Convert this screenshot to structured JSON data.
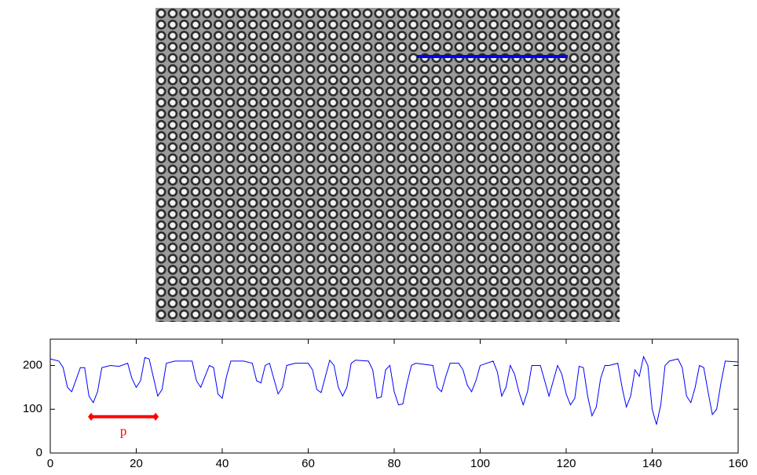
{
  "chart_data": {
    "type": "line",
    "x": [
      0,
      2,
      3,
      4,
      5,
      7,
      8,
      9,
      10,
      11,
      12,
      14,
      16,
      18,
      19,
      20,
      21,
      22,
      23,
      25,
      26,
      27,
      29,
      33,
      34,
      35,
      37,
      38,
      39,
      40,
      41,
      42,
      45,
      47,
      48,
      49,
      50,
      51,
      53,
      54,
      55,
      57,
      60,
      61,
      62,
      63,
      64,
      65,
      66,
      67,
      68,
      69,
      70,
      71,
      74,
      75,
      76,
      77,
      78,
      79,
      80,
      81,
      82,
      83,
      84,
      85,
      89,
      90,
      91,
      92,
      93,
      95,
      96,
      97,
      98,
      99,
      100,
      103,
      104,
      105,
      106,
      107,
      108,
      109,
      110,
      111,
      112,
      114,
      115,
      116,
      117,
      118,
      119,
      120,
      121,
      122,
      123,
      124,
      125,
      126,
      127,
      128,
      129,
      130,
      132,
      133,
      134,
      135,
      136,
      137,
      138,
      139,
      140,
      141,
      142,
      143,
      144,
      146,
      147,
      148,
      149,
      150,
      151,
      152,
      153,
      154,
      155,
      156,
      157,
      160
    ],
    "series": [
      {
        "color": "#0000ff",
        "values": [
          215,
          210,
          195,
          150,
          140,
          195,
          195,
          130,
          115,
          140,
          195,
          200,
          198,
          205,
          170,
          150,
          165,
          218,
          215,
          130,
          145,
          205,
          210,
          210,
          165,
          150,
          200,
          195,
          135,
          125,
          175,
          210,
          210,
          205,
          165,
          160,
          200,
          205,
          135,
          150,
          200,
          205,
          205,
          190,
          145,
          138,
          175,
          212,
          200,
          150,
          130,
          150,
          205,
          212,
          210,
          190,
          125,
          128,
          190,
          200,
          140,
          110,
          112,
          160,
          200,
          205,
          200,
          150,
          140,
          175,
          205,
          205,
          190,
          155,
          140,
          165,
          200,
          210,
          185,
          130,
          150,
          200,
          180,
          140,
          110,
          140,
          200,
          200,
          165,
          130,
          165,
          200,
          180,
          135,
          110,
          125,
          198,
          195,
          130,
          85,
          105,
          170,
          200,
          200,
          205,
          150,
          105,
          130,
          190,
          175,
          220,
          200,
          100,
          65,
          110,
          200,
          210,
          215,
          195,
          130,
          115,
          150,
          200,
          195,
          140,
          88,
          100,
          160,
          210,
          208
        ]
      }
    ],
    "xlim": [
      0,
      160
    ],
    "xticks": [
      0,
      20,
      40,
      60,
      80,
      100,
      120,
      140,
      160
    ],
    "ylim": [
      0,
      260
    ],
    "yticks": [
      0,
      100,
      200
    ],
    "annotations": [
      {
        "text": "p",
        "x1": 9.5,
        "x2": 24.5,
        "y": 83,
        "color": "#ff0000"
      }
    ]
  }
}
